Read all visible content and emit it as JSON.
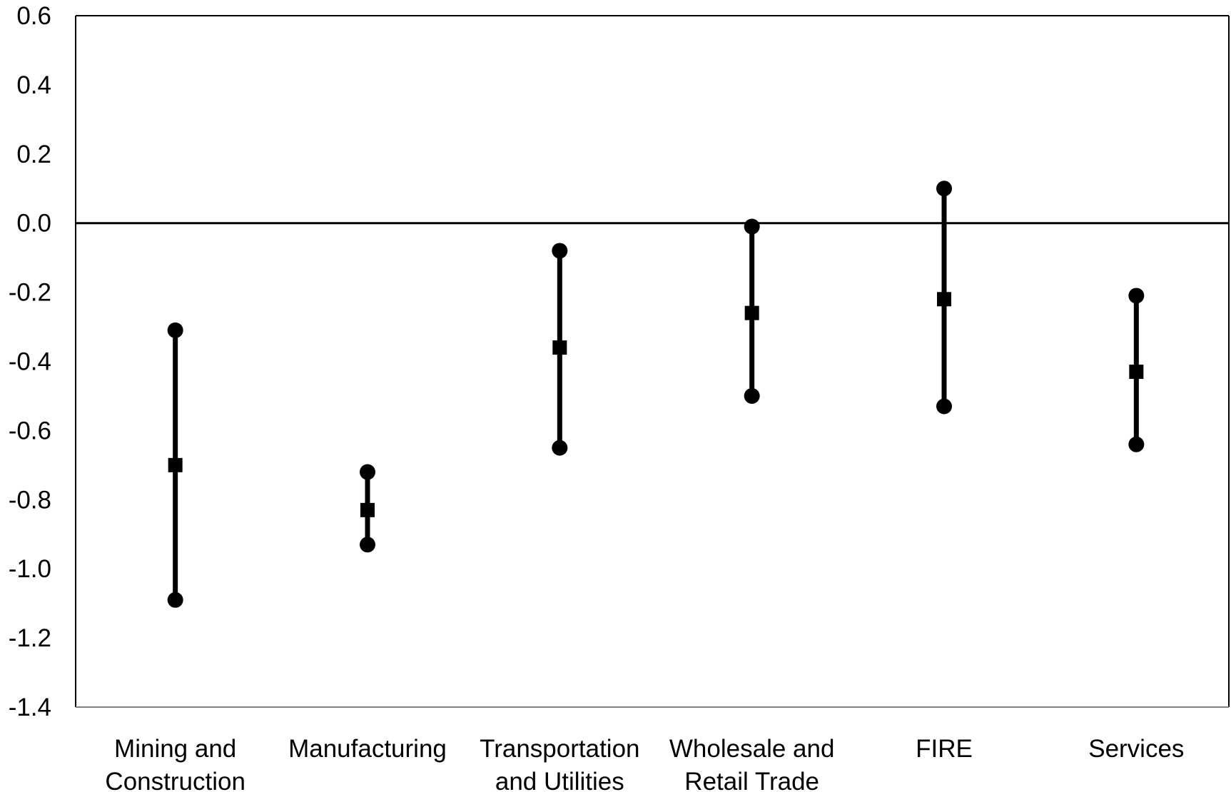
{
  "chart_data": {
    "type": "errorbar",
    "title": "",
    "xlabel": "",
    "ylabel": "",
    "ylim": [
      -1.4,
      0.6
    ],
    "y_ticks": [
      "0.6",
      "0.4",
      "0.2",
      "0.0",
      "-0.2",
      "-0.4",
      "-0.6",
      "-0.8",
      "-1.0",
      "-1.2",
      "-1.4"
    ],
    "y_tick_values": [
      0.6,
      0.4,
      0.2,
      0.0,
      -0.2,
      -0.4,
      -0.6,
      -0.8,
      -1.0,
      -1.2,
      -1.4
    ],
    "reference_line": 0.0,
    "grid": false,
    "legend": "none",
    "categories": [
      [
        "Mining and",
        "Construction"
      ],
      [
        "Manufacturing"
      ],
      [
        "Transportation",
        "and Utilities"
      ],
      [
        "Wholesale and",
        "Retail Trade"
      ],
      [
        "FIRE"
      ],
      [
        "Services"
      ]
    ],
    "series": [
      {
        "estimate": [
          -0.7,
          -0.83,
          -0.36,
          -0.26,
          -0.22,
          -0.43
        ],
        "upper": [
          -0.31,
          -0.72,
          -0.08,
          -0.01,
          0.1,
          -0.21
        ],
        "lower": [
          -1.09,
          -0.93,
          -0.65,
          -0.5,
          -0.53,
          -0.64
        ]
      }
    ],
    "colors": {
      "marker": "#000000",
      "axis": "#000000",
      "frame": "#000000"
    }
  }
}
